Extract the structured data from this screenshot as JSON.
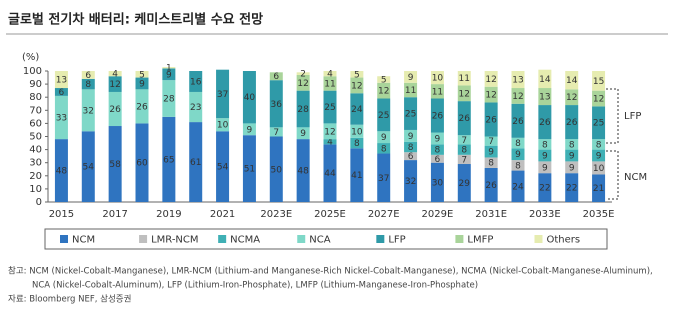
{
  "chart_data": {
    "type": "stacked_bar",
    "title": "글로벌 전기차 배터리: 케미스트리별 수요 전망",
    "y_unit_label": "(%)",
    "categories": [
      "2015",
      null,
      "2017",
      null,
      "2019",
      null,
      "2021",
      null,
      "2023E",
      null,
      "2025E",
      null,
      "2027E",
      null,
      "2029E",
      null,
      "2031E",
      null,
      "2033E",
      null,
      "2035E"
    ],
    "series": [
      {
        "name": "NCM",
        "color": "#2f74c0",
        "values": [
          48,
          54,
          58,
          60,
          65,
          61,
          54,
          51,
          50,
          48,
          44,
          41,
          37,
          32,
          30,
          29,
          26,
          24,
          22,
          22,
          21
        ]
      },
      {
        "name": "LMR-NCM",
        "color": "#bfbfbf",
        "values": [
          null,
          null,
          null,
          null,
          null,
          null,
          null,
          null,
          null,
          null,
          null,
          null,
          null,
          6,
          6,
          7,
          8,
          8,
          9,
          9,
          10
        ]
      },
      {
        "name": "NCMA",
        "color": "#3fb0b5",
        "values": [
          null,
          null,
          null,
          null,
          null,
          null,
          null,
          null,
          null,
          null,
          4,
          8,
          8,
          8,
          8,
          8,
          9,
          9,
          9,
          9,
          9
        ]
      },
      {
        "name": "NCA",
        "color": "#7fd8c8",
        "values": [
          33,
          32,
          26,
          26,
          28,
          23,
          10,
          9,
          7,
          9,
          12,
          10,
          9,
          9,
          9,
          7,
          7,
          8,
          8,
          8,
          8
        ]
      },
      {
        "name": "LFP",
        "color": "#2f9aa8",
        "values": [
          6,
          8,
          12,
          9,
          9,
          16,
          37,
          40,
          36,
          28,
          25,
          24,
          25,
          25,
          26,
          26,
          26,
          26,
          26,
          26,
          25
        ]
      },
      {
        "name": "LMFP",
        "color": "#a9d49a",
        "values": [
          null,
          null,
          null,
          null,
          null,
          null,
          null,
          null,
          6,
          12,
          11,
          12,
          12,
          11,
          11,
          12,
          12,
          12,
          13,
          12,
          12
        ]
      },
      {
        "name": "Others",
        "color": "#e6ecb0",
        "values": [
          13,
          6,
          4,
          5,
          1,
          null,
          null,
          null,
          null,
          2,
          4,
          5,
          5,
          9,
          10,
          11,
          12,
          13,
          14,
          14,
          15
        ]
      }
    ],
    "ylim": [
      0,
      100
    ],
    "yticks": [
      0,
      10,
      20,
      30,
      40,
      50,
      60,
      70,
      80,
      90,
      100
    ],
    "annotations": [
      "LFP",
      "NCM"
    ],
    "footnotes": [
      "참고: NCM (Nickel-Cobalt-Manganese), LMR-NCM (Lithium-and Manganese-Rich Nickel-Cobalt-Manganese), NCMA (Nickel-Cobalt-Manganese-Aluminum),",
      "NCA (Nickel-Cobalt-Aluminum), LFP (Lithium-Iron-Phosphate), LMFP (Lithium-Manganese-Iron-Phosphate)",
      "자료: Bloomberg NEF, 삼성증권"
    ]
  }
}
